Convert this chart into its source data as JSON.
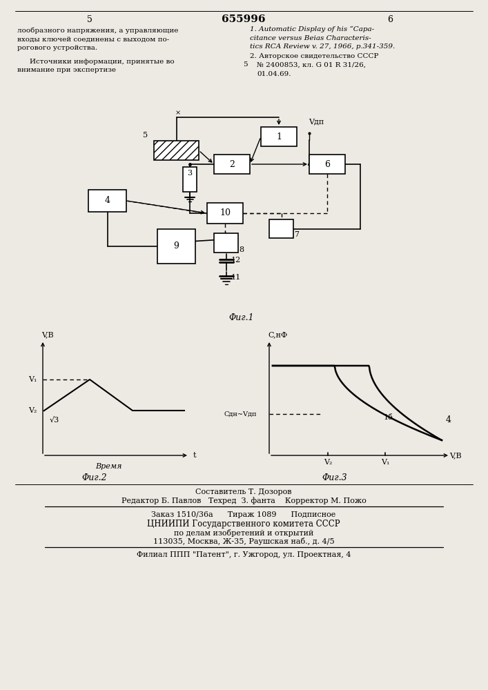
{
  "page_color": "#ede9e3",
  "title_number": "655996",
  "col_left_num": "5",
  "col_right_num": "6",
  "left_text_lines": [
    "лообразного напряжения, а управляющие",
    "входы ключей соединены с выходом по-",
    "рогового устройства."
  ],
  "left_text2_lines": [
    "Источники информации, принятые во",
    "внимание при экспертизе"
  ],
  "right_text_lines": [
    "1. Automatic Display of his “Capa-",
    "citance versus Beias Characteris-",
    "tics RCA Review v. 27, 1966, p.341-359.",
    "2. Авторское свидетельство СССР",
    "№ 2400853, кл. G 01 R 31/26,",
    "01.04.69."
  ],
  "ref_num_5": "5",
  "fig1_label": "Φиг.1",
  "fig2_label": "Φиг.2",
  "fig3_label": "Φиг.3",
  "bottom_text": [
    "Составитель Т. Дозоров",
    "Редактор Б. Павлов   Техред  З. фанта    Корректор М. Пожо",
    "Заказ 1510/36а      Тираж 1089      Подписное",
    "ЦНИИПИ Государственного комитета СССР",
    "по делам изобретений и открытий",
    "113035, Москва, Ж-35, Раушская наб., д. 4/5",
    "Филиал ППП \"Патент\", г. Ужгород, ул. Проектная, 4"
  ]
}
